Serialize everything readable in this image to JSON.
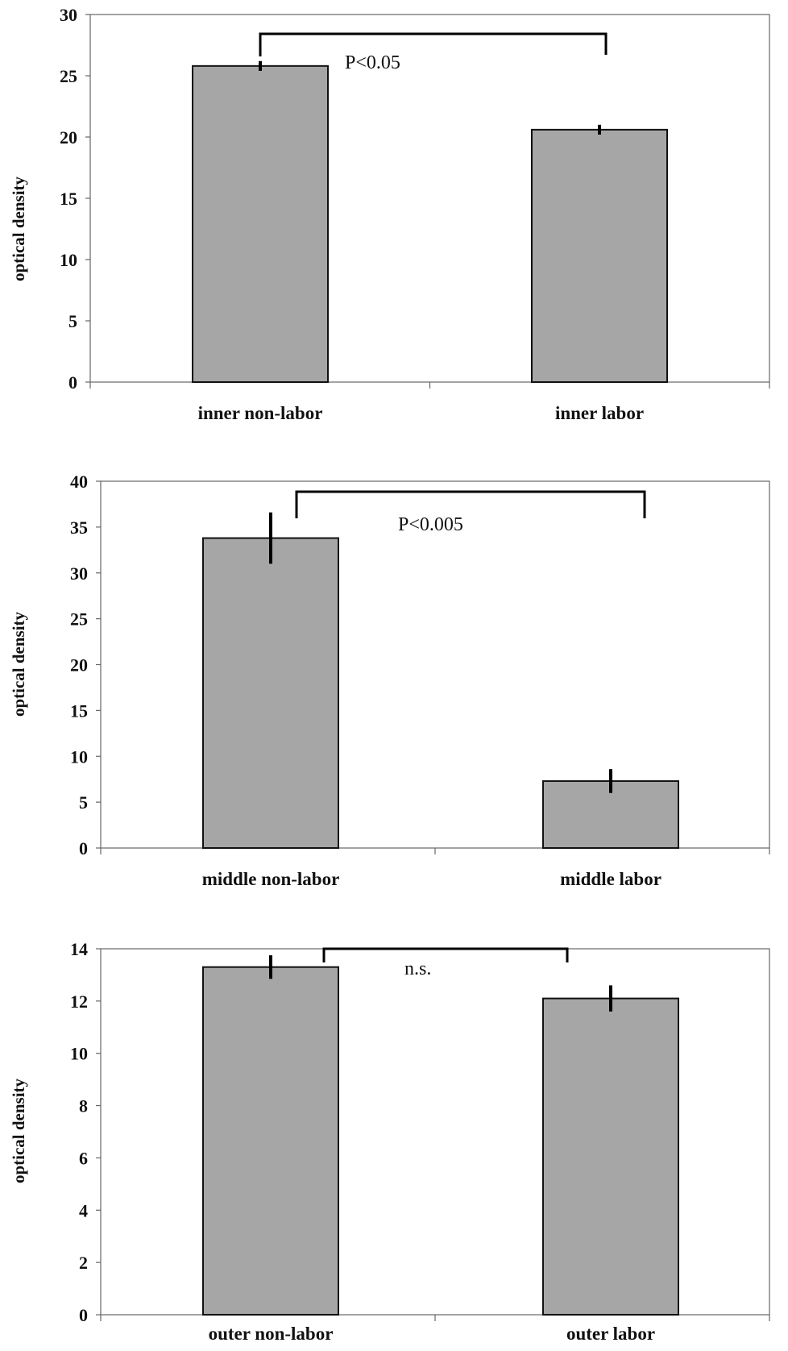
{
  "chart_data": [
    {
      "type": "bar",
      "categories": [
        "inner  non-labor",
        "inner labor"
      ],
      "values": [
        25.8,
        20.6
      ],
      "error": [
        0.4,
        0.4
      ],
      "ylabel": "optical density",
      "ylim": [
        0,
        30
      ],
      "yticks": [
        0,
        5,
        10,
        15,
        20,
        25,
        30
      ],
      "significance": {
        "between": [
          0,
          1
        ],
        "label": "P<0.05"
      },
      "bar_color": "#a6a6a6"
    },
    {
      "type": "bar",
      "categories": [
        "middle  non-labor",
        "middle labor"
      ],
      "values": [
        33.8,
        7.3
      ],
      "error": [
        2.8,
        1.3
      ],
      "ylabel": "optical density",
      "ylim": [
        0,
        40
      ],
      "yticks": [
        0,
        5,
        10,
        15,
        20,
        25,
        30,
        35,
        40
      ],
      "significance": {
        "between": [
          0,
          1
        ],
        "label": "P<0.005"
      },
      "bar_color": "#a6a6a6"
    },
    {
      "type": "bar",
      "categories": [
        "outer non-labor",
        "outer labor"
      ],
      "values": [
        13.3,
        12.1
      ],
      "error": [
        0.45,
        0.5
      ],
      "ylabel": "optical density",
      "ylim": [
        0,
        14
      ],
      "yticks": [
        0,
        2,
        4,
        6,
        8,
        10,
        12,
        14
      ],
      "significance": {
        "between": [
          0,
          1
        ],
        "label": "n.s."
      },
      "bar_color": "#a6a6a6"
    }
  ]
}
